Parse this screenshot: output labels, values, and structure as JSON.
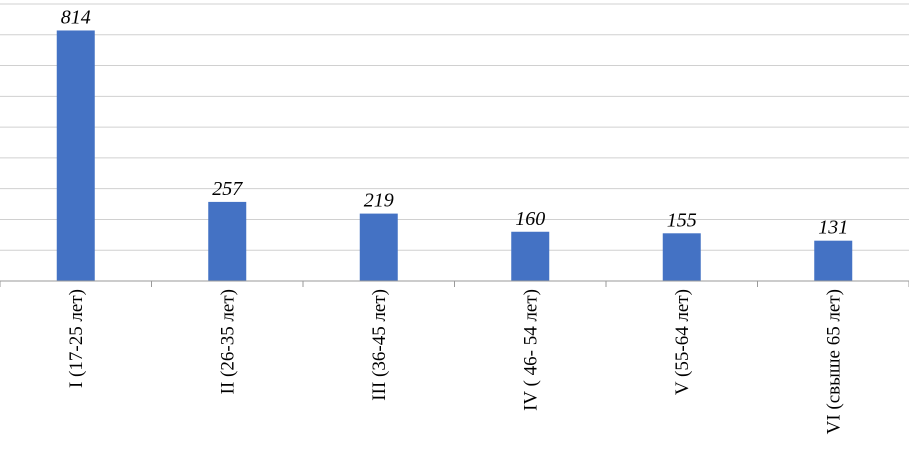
{
  "chart_data": {
    "type": "bar",
    "title": "",
    "xlabel": "",
    "ylabel": "",
    "categories": [
      "I (17-25 лет)",
      "II (26-35 лет)",
      "III (36-45 лет)",
      "IV ( 46- 54 лет)",
      "V (55-64 лет)",
      "VI (свыше 65 лет)"
    ],
    "series": [
      {
        "values": [
          814,
          257,
          219,
          160,
          155,
          131
        ],
        "color": "#4472c4"
      }
    ],
    "ylim": [
      0,
      900
    ],
    "grid": true,
    "legend": "none",
    "data_labels": true,
    "category_label_orientation": "vertical"
  }
}
